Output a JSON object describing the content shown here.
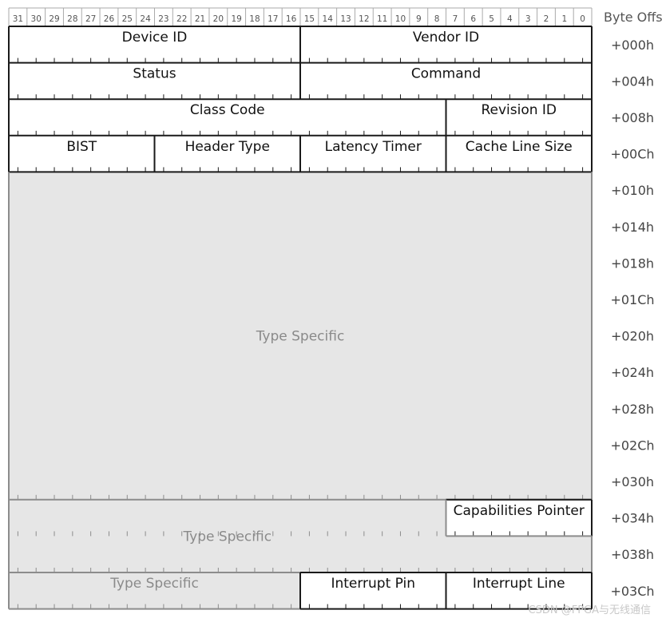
{
  "offset_header": "Byte Offs",
  "bit_labels": [
    "31",
    "30",
    "29",
    "28",
    "27",
    "26",
    "25",
    "24",
    "23",
    "22",
    "21",
    "20",
    "19",
    "18",
    "17",
    "16",
    "15",
    "14",
    "13",
    "12",
    "11",
    "10",
    "9",
    "8",
    "7",
    "6",
    "5",
    "4",
    "3",
    "2",
    "1",
    "0"
  ],
  "offsets": [
    "+000h",
    "+004h",
    "+008h",
    "+00Ch",
    "+010h",
    "+014h",
    "+018h",
    "+01Ch",
    "+020h",
    "+024h",
    "+028h",
    "+02Ch",
    "+030h",
    "+034h",
    "+038h",
    "+03Ch"
  ],
  "rows": [
    [
      {
        "label": "Device ID",
        "hi": 31,
        "lo": 16
      },
      {
        "label": "Vendor ID",
        "hi": 15,
        "lo": 0
      }
    ],
    [
      {
        "label": "Status",
        "hi": 31,
        "lo": 16
      },
      {
        "label": "Command",
        "hi": 15,
        "lo": 0
      }
    ],
    [
      {
        "label": "Class Code",
        "hi": 31,
        "lo": 8
      },
      {
        "label": "Revision ID",
        "hi": 7,
        "lo": 0
      }
    ],
    [
      {
        "label": "BIST",
        "hi": 31,
        "lo": 24
      },
      {
        "label": "Header Type",
        "hi": 23,
        "lo": 16
      },
      {
        "label": "Latency Timer",
        "hi": 15,
        "lo": 8
      },
      {
        "label": "Cache Line Size",
        "hi": 7,
        "lo": 0
      }
    ]
  ],
  "type_specific_label": "Type Specific",
  "capabilities_pointer": "Capabilities Pointer",
  "interrupt_pin": "Interrupt Pin",
  "interrupt_line": "Interrupt Line",
  "watermark": "CSDN @FPGA与无线通信"
}
